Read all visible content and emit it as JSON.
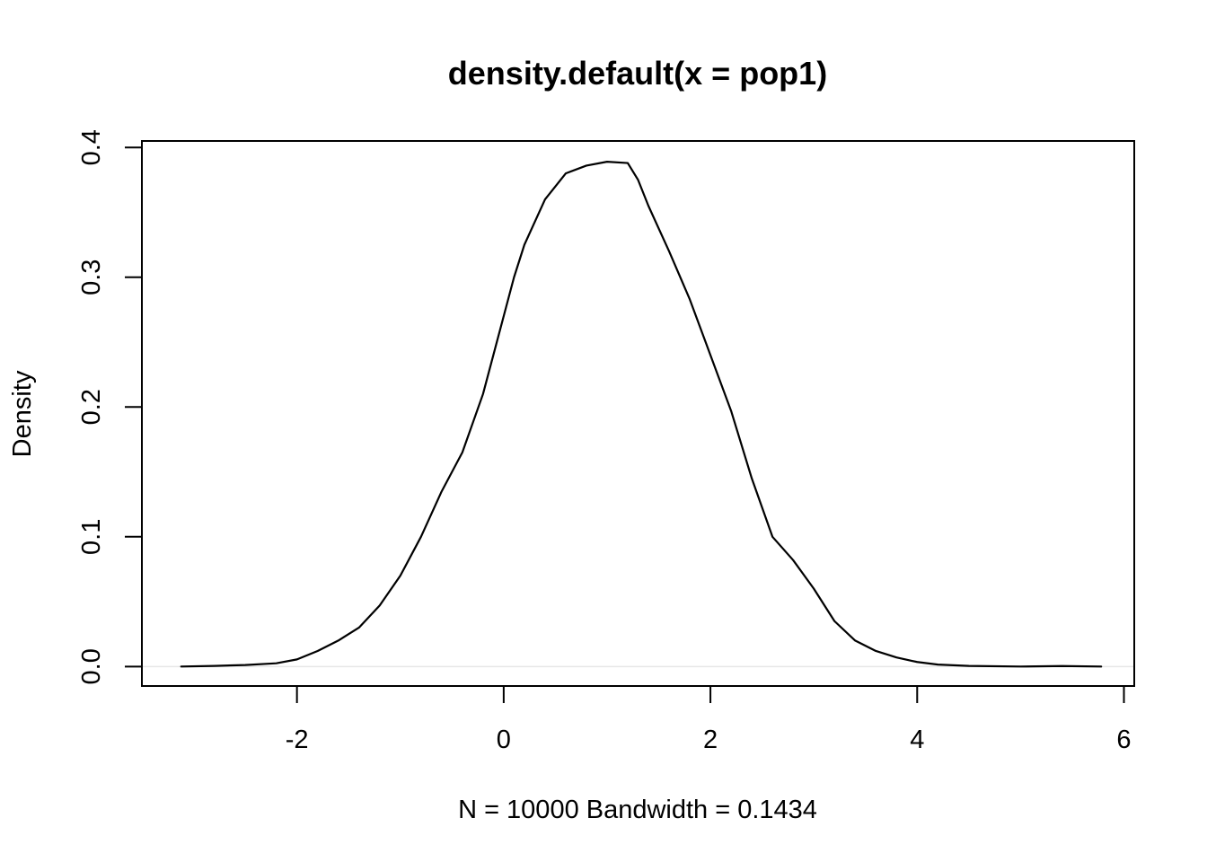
{
  "chart_data": {
    "type": "line",
    "title": "density.default(x = pop1)",
    "xlabel": "N = 10000   Bandwidth = 0.1434",
    "ylabel": "Density",
    "xlim": [
      -3.5,
      6.1
    ],
    "ylim": [
      -0.015,
      0.405
    ],
    "x_ticks": [
      -2,
      0,
      2,
      4,
      6
    ],
    "x_tick_labels": [
      "-2",
      "0",
      "2",
      "4",
      "6"
    ],
    "y_ticks": [
      0.0,
      0.1,
      0.2,
      0.3,
      0.4
    ],
    "y_tick_labels": [
      "0.0",
      "0.1",
      "0.2",
      "0.3",
      "0.4"
    ],
    "grid": false,
    "baseline": 0.0,
    "baseline_color": "#e6e6e6",
    "line_color": "#000000",
    "series": [
      {
        "x": [
          -3.12,
          -2.8,
          -2.5,
          -2.2,
          -2.0,
          -1.8,
          -1.6,
          -1.4,
          -1.2,
          -1.0,
          -0.8,
          -0.6,
          -0.4,
          -0.2,
          0.0,
          0.1,
          0.2,
          0.4,
          0.6,
          0.8,
          1.0,
          1.2,
          1.3,
          1.4,
          1.6,
          1.8,
          2.0,
          2.2,
          2.4,
          2.6,
          2.8,
          3.0,
          3.2,
          3.4,
          3.6,
          3.8,
          4.0,
          4.2,
          4.5,
          5.0,
          5.4,
          5.78
        ],
        "y": [
          0.0,
          0.0005,
          0.0012,
          0.0025,
          0.0055,
          0.012,
          0.02,
          0.03,
          0.047,
          0.07,
          0.1,
          0.135,
          0.165,
          0.21,
          0.27,
          0.3,
          0.325,
          0.36,
          0.38,
          0.386,
          0.389,
          0.388,
          0.375,
          0.355,
          0.32,
          0.283,
          0.24,
          0.197,
          0.145,
          0.1,
          0.082,
          0.06,
          0.035,
          0.02,
          0.012,
          0.007,
          0.0035,
          0.0015,
          0.0005,
          0.0,
          0.0004,
          0.0
        ]
      }
    ]
  }
}
